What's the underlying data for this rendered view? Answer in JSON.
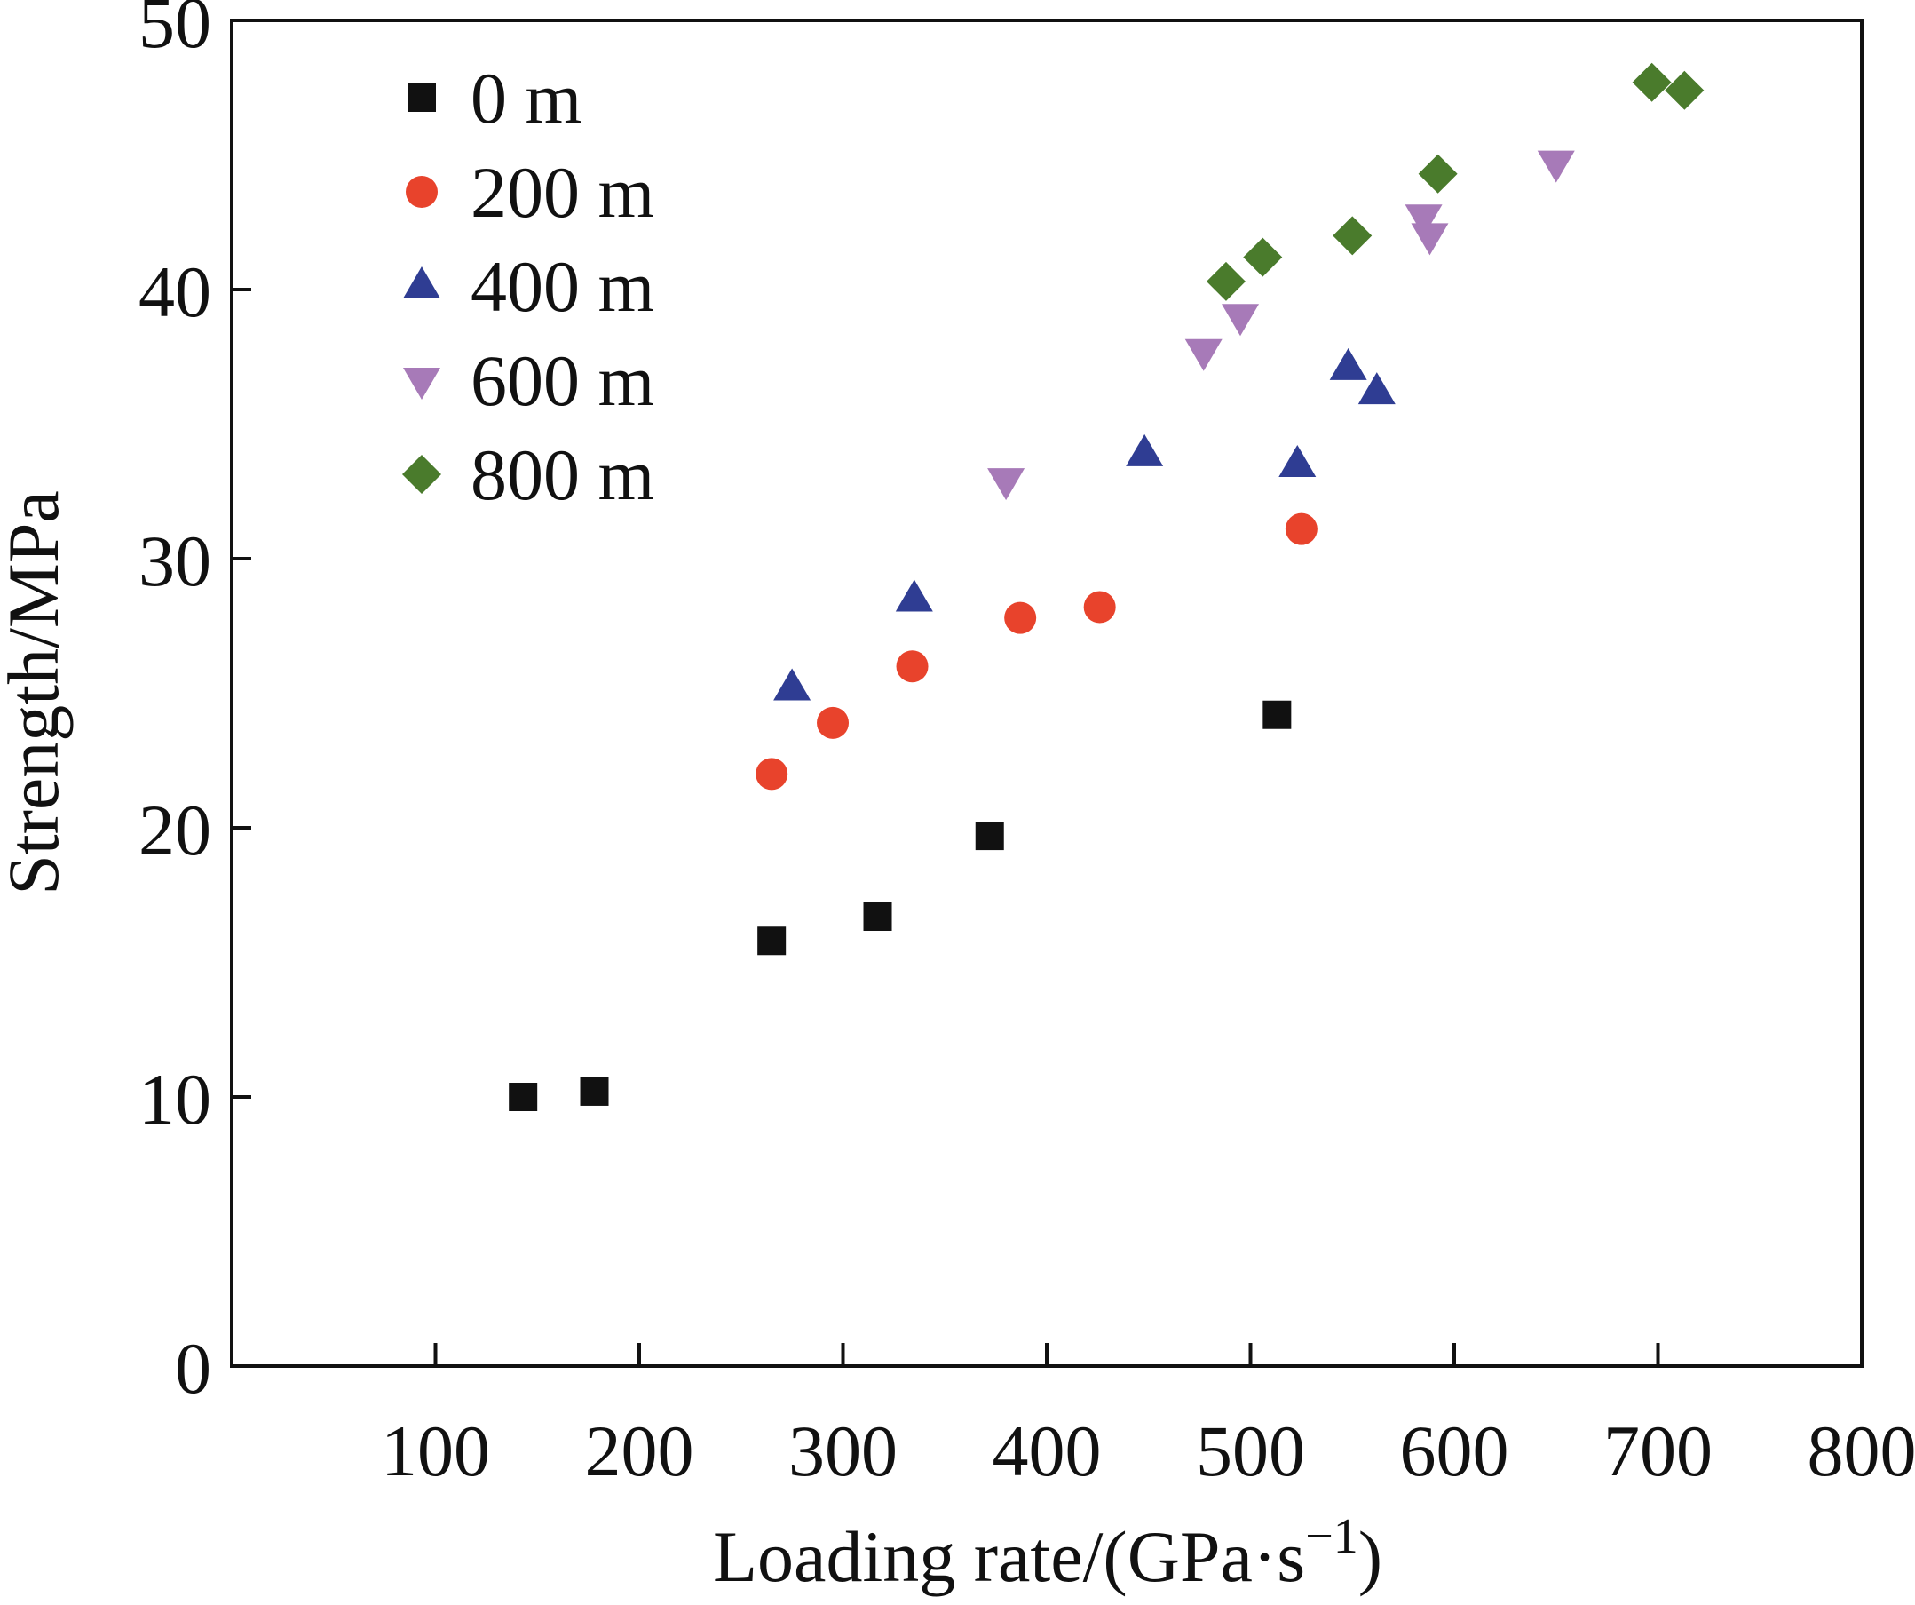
{
  "chart_data": {
    "type": "scatter",
    "title": "",
    "xlabel": "Loading rate/(GPa·s",
    "xlabel_sup": "−1",
    "xlabel_close": ")",
    "ylabel": "Strength/MPa",
    "xlim": [
      0,
      800
    ],
    "ylim": [
      0,
      50
    ],
    "xticks": [
      100,
      200,
      300,
      400,
      500,
      600,
      700,
      800
    ],
    "yticks": [
      0,
      10,
      20,
      30,
      40,
      50
    ],
    "grid": false,
    "legend_position": "top-left",
    "series": [
      {
        "name": "0 m",
        "marker": "square",
        "color": "#111111",
        "points": [
          [
            143,
            10.0
          ],
          [
            178,
            10.2
          ],
          [
            265,
            15.8
          ],
          [
            317,
            16.7
          ],
          [
            372,
            19.7
          ],
          [
            513,
            24.2
          ]
        ]
      },
      {
        "name": "200 m",
        "marker": "circle",
        "color": "#e8432c",
        "points": [
          [
            265,
            22.0
          ],
          [
            295,
            23.9
          ],
          [
            334,
            26.0
          ],
          [
            387,
            27.8
          ],
          [
            426,
            28.2
          ],
          [
            525,
            31.1
          ]
        ]
      },
      {
        "name": "400 m",
        "marker": "triangle-up",
        "color": "#2f3d93",
        "points": [
          [
            275,
            25.2
          ],
          [
            335,
            28.5
          ],
          [
            448,
            33.9
          ],
          [
            523,
            33.5
          ],
          [
            548,
            37.1
          ],
          [
            562,
            36.2
          ]
        ]
      },
      {
        "name": "600 m",
        "marker": "triangle-down",
        "color": "#a77ab8",
        "points": [
          [
            380,
            32.9
          ],
          [
            477,
            37.7
          ],
          [
            495,
            39.0
          ],
          [
            585,
            42.7
          ],
          [
            588,
            42.0
          ],
          [
            650,
            44.7
          ]
        ]
      },
      {
        "name": "800 m",
        "marker": "diamond",
        "color": "#4a7b2c",
        "points": [
          [
            488,
            40.3
          ],
          [
            506,
            41.2
          ],
          [
            550,
            42.0
          ],
          [
            592,
            44.3
          ],
          [
            697,
            47.7
          ],
          [
            713,
            47.4
          ]
        ]
      }
    ]
  }
}
